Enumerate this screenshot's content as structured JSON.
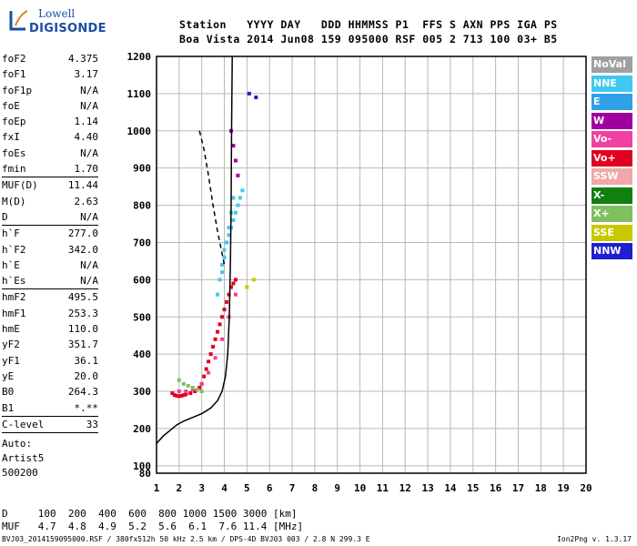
{
  "logo": {
    "word1": "Lowell",
    "word2": "DIGISONDE"
  },
  "header": {
    "line1": "Station   YYYY DAY   DDD HHMMSS P1  FFS S AXN PPS IGA PS",
    "line2": "Boa Vista 2014 Jun08 159 095000 RSF 005 2 713 100 03+ B5"
  },
  "params_group1": [
    {
      "label": "foF2",
      "value": "4.375"
    },
    {
      "label": "foF1",
      "value": "3.17"
    },
    {
      "label": "foF1p",
      "value": "N/A"
    },
    {
      "label": "foE",
      "value": "N/A"
    },
    {
      "label": "foEp",
      "value": "1.14"
    },
    {
      "label": "fxI",
      "value": "4.40"
    },
    {
      "label": "foEs",
      "value": "N/A"
    },
    {
      "label": "fmin",
      "value": "1.70"
    }
  ],
  "params_group2": [
    {
      "label": "MUF(D)",
      "value": "11.44"
    },
    {
      "label": "M(D)",
      "value": "2.63"
    },
    {
      "label": "D",
      "value": "N/A"
    }
  ],
  "params_group3": [
    {
      "label": "h`F",
      "value": "277.0"
    },
    {
      "label": "h`F2",
      "value": "342.0"
    },
    {
      "label": "h`E",
      "value": "N/A"
    },
    {
      "label": "h`Es",
      "value": "N/A"
    }
  ],
  "params_group4": [
    {
      "label": "hmF2",
      "value": "495.5"
    },
    {
      "label": "hmF1",
      "value": "253.3"
    },
    {
      "label": "hmE",
      "value": "110.0"
    },
    {
      "label": "yF2",
      "value": "351.7"
    },
    {
      "label": "yF1",
      "value": "36.1"
    },
    {
      "label": "yE",
      "value": "20.0"
    },
    {
      "label": "B0",
      "value": "264.3"
    },
    {
      "label": "B1",
      "value": "*.**"
    }
  ],
  "params_group5": [
    {
      "label": "C-level",
      "value": "33"
    }
  ],
  "auto": {
    "line1": "Auto:",
    "line2": "Artist5",
    "line3": "500200"
  },
  "muf_table": {
    "d_line": "D     100  200  400  600  800 1000 1500 3000 [km]",
    "muf_line": "MUF   4.7  4.8  4.9  5.2  5.6  6.1  7.6 11.4 [MHz]"
  },
  "footer": {
    "left": "BVJ03_2014159095000.RSF / 380fx512h 50 kHz 2.5 km / DPS-4D BVJ03 003 / 2.8 N 299.3 E",
    "right": "Ion2Png v. 1.3.17"
  },
  "legend": [
    {
      "label": "NoVal",
      "color": "#a0a0a0"
    },
    {
      "label": "NNE",
      "color": "#40c8f0"
    },
    {
      "label": "E",
      "color": "#30a0e8"
    },
    {
      "label": "W",
      "color": "#a000a0"
    },
    {
      "label": "Vo-",
      "color": "#f040a0"
    },
    {
      "label": "Vo+",
      "color": "#e00020"
    },
    {
      "label": "SSW",
      "color": "#f0a8a8"
    },
    {
      "label": "X-",
      "color": "#108010"
    },
    {
      "label": "X+",
      "color": "#80c060"
    },
    {
      "label": "SSE",
      "color": "#c8c800"
    },
    {
      "label": "NNW",
      "color": "#2020d0"
    }
  ],
  "chart_data": {
    "type": "scatter",
    "xlabel": "",
    "ylabel": "",
    "xlim": [
      1,
      20
    ],
    "ylim": [
      80,
      1200
    ],
    "x_ticks": [
      "1",
      "2",
      "3",
      "4",
      "5",
      "6",
      "7",
      "8",
      "9",
      "10",
      "11",
      "12",
      "13",
      "14",
      "15",
      "16",
      "17",
      "18",
      "19",
      "20"
    ],
    "y_ticks": [
      "80",
      "100",
      "200",
      "300",
      "400",
      "500",
      "600",
      "700",
      "800",
      "900",
      "1000",
      "1100",
      "1200"
    ],
    "grid": true,
    "profile_curve": {
      "x": [
        1.0,
        1.3,
        1.6,
        1.9,
        2.2,
        2.6,
        3.0,
        3.4,
        3.7,
        3.9,
        4.05,
        4.15,
        4.22,
        4.27,
        4.3,
        4.32,
        4.35
      ],
      "y": [
        160,
        180,
        195,
        210,
        220,
        230,
        240,
        255,
        275,
        300,
        340,
        400,
        500,
        650,
        800,
        1000,
        1200
      ]
    },
    "dashed_curve": {
      "x": [
        2.9,
        3.1,
        3.3,
        3.5,
        3.7,
        3.9,
        4.0
      ],
      "y": [
        1000,
        950,
        880,
        800,
        730,
        670,
        640
      ]
    },
    "echoes": [
      {
        "series": "Vo+",
        "x": [
          1.7,
          1.8,
          1.9,
          2.0,
          2.1,
          2.2,
          2.3,
          2.5,
          2.7,
          2.9,
          3.0,
          3.1,
          3.2,
          3.3,
          3.4,
          3.5,
          3.6,
          3.7,
          3.8,
          3.9,
          4.0,
          4.1,
          4.2,
          4.3,
          4.4,
          4.5
        ],
        "y": [
          295,
          290,
          288,
          287,
          288,
          290,
          292,
          295,
          300,
          310,
          320,
          340,
          360,
          380,
          400,
          420,
          440,
          460,
          480,
          500,
          520,
          540,
          560,
          580,
          590,
          600
        ]
      },
      {
        "series": "NNE",
        "x": [
          3.7,
          3.8,
          3.9,
          4.0,
          4.1,
          4.2,
          4.3,
          4.4,
          4.5,
          4.6,
          4.7,
          4.8,
          3.9,
          4.0,
          4.1,
          4.2,
          4.3,
          4.4
        ],
        "y": [
          560,
          600,
          640,
          680,
          700,
          720,
          740,
          760,
          780,
          800,
          820,
          840,
          620,
          660,
          700,
          740,
          780,
          820
        ]
      },
      {
        "series": "Vo-",
        "x": [
          2.0,
          2.3,
          2.6,
          3.0,
          3.3,
          3.6,
          3.9,
          4.2,
          4.5
        ],
        "y": [
          300,
          300,
          305,
          320,
          350,
          390,
          440,
          500,
          560
        ]
      },
      {
        "series": "X+",
        "x": [
          2.0,
          2.2,
          2.4,
          2.6,
          2.8,
          3.0
        ],
        "y": [
          330,
          320,
          315,
          310,
          305,
          300
        ]
      },
      {
        "series": "W",
        "x": [
          4.3,
          4.4,
          4.5,
          4.6
        ],
        "y": [
          1000,
          960,
          920,
          880
        ]
      },
      {
        "series": "NNW",
        "x": [
          5.1,
          5.4
        ],
        "y": [
          1100,
          1090
        ]
      },
      {
        "series": "SSE",
        "x": [
          5.0,
          5.3
        ],
        "y": [
          580,
          600
        ]
      }
    ]
  }
}
